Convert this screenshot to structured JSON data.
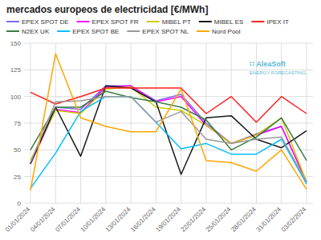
{
  "chart_data": {
    "type": "line",
    "title": "mercados europeos de electricidad [€/MWh]",
    "categories": [
      "01/01/2024",
      "04/01/2024",
      "07/01/2024",
      "10/01/2024",
      "13/01/2024",
      "16/01/2024",
      "19/01/2024",
      "22/01/2024",
      "25/01/2024",
      "28/01/2024",
      "31/01/2024",
      "03/02/2024"
    ],
    "series": [
      {
        "name": "EPEX SPOT DE",
        "color": "#7B68EE",
        "values": [
          37,
          90,
          88,
          110,
          110,
          96,
          102,
          75,
          56,
          65,
          72,
          20
        ]
      },
      {
        "name": "EPEX SPOT FR",
        "color": "#FF00FF",
        "values": [
          37,
          88,
          85,
          109,
          110,
          95,
          100,
          73,
          56,
          64,
          72,
          20
        ]
      },
      {
        "name": "MIBEL PT",
        "color": "#CCCC00",
        "values": [
          40,
          87,
          84,
          107,
          109,
          90,
          87,
          73,
          56,
          64,
          80,
          20
        ]
      },
      {
        "name": "MIBEL ES",
        "color": "#1a1a1a",
        "values": [
          37,
          90,
          44,
          110,
          108,
          95,
          27,
          80,
          82,
          60,
          52,
          68
        ]
      },
      {
        "name": "IPEX IT",
        "color": "#FF2020",
        "values": [
          104,
          93,
          100,
          108,
          108,
          108,
          108,
          84,
          100,
          76,
          100,
          84
        ]
      },
      {
        "name": "N2EX UK",
        "color": "#3a7d44",
        "values": [
          50,
          90,
          90,
          105,
          99,
          95,
          90,
          78,
          50,
          62,
          80,
          40
        ]
      },
      {
        "name": "EPEX SPOT BE",
        "color": "#00BFFF",
        "values": [
          14,
          47,
          86,
          100,
          100,
          76,
          51,
          56,
          46,
          46,
          60,
          18
        ]
      },
      {
        "name": "EPEX SPOT NL",
        "color": "#999999",
        "values": [
          38,
          95,
          96,
          100,
          100,
          76,
          86,
          60,
          56,
          60,
          62,
          20
        ]
      },
      {
        "name": "Nord Pool",
        "color": "#FFA500",
        "values": [
          12,
          140,
          80,
          72,
          67,
          67,
          107,
          40,
          38,
          30,
          50,
          13
        ]
      }
    ],
    "ylim": [
      0,
      150
    ],
    "yticks": [
      0,
      25,
      50,
      75,
      100,
      125,
      150
    ],
    "grid": true,
    "legend": "top",
    "annotations": [
      "∷ AleaSoft",
      "ENERGY FORECASTING"
    ]
  }
}
